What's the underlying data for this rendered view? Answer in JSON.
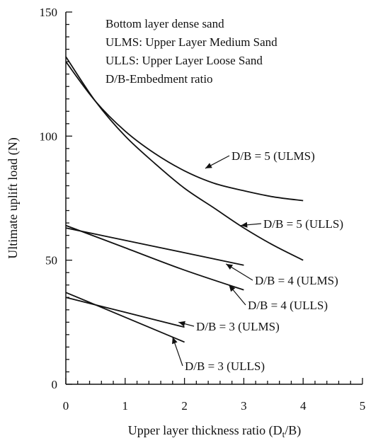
{
  "chart_data": {
    "type": "line",
    "xlabel": "Upper layer thickness ratio (D",
    "xlabel_sub": "t",
    "xlabel_tail": "/B)",
    "ylabel": "Ultimate uplift load (N)",
    "xlim": [
      0,
      5
    ],
    "ylim": [
      0,
      150
    ],
    "x_ticks": [
      "0",
      "1",
      "2",
      "3",
      "4",
      "5"
    ],
    "y_ticks": [
      "0",
      "50",
      "100",
      "150"
    ],
    "grid": false,
    "notes": [
      "Bottom layer dense sand",
      "ULMS: Upper Layer Medium Sand",
      "ULLS: Upper Layer Loose Sand",
      "D/B-Embedment ratio"
    ],
    "series": [
      {
        "name": "D/B = 5 (ULMS)",
        "x": [
          0,
          0.5,
          1,
          1.5,
          2,
          2.5,
          3,
          3.5,
          4
        ],
        "y": [
          130,
          114,
          102,
          93,
          86,
          81,
          78,
          75.5,
          74
        ],
        "label_at": [
          2.35,
          87
        ]
      },
      {
        "name": "D/B = 5 (ULLS)",
        "x": [
          0,
          0.5,
          1,
          1.5,
          2,
          2.5,
          3,
          3.5,
          4
        ],
        "y": [
          132,
          114,
          100,
          89,
          79,
          71,
          63,
          56,
          50
        ],
        "label_at": [
          2.95,
          64
        ]
      },
      {
        "name": "D/B = 4 (ULMS)",
        "x": [
          0,
          1,
          2,
          3
        ],
        "y": [
          63,
          58,
          53,
          48
        ],
        "label_at": [
          2.7,
          48.5
        ]
      },
      {
        "name": "D/B = 4 (ULLS)",
        "x": [
          0,
          1,
          2,
          3
        ],
        "y": [
          64,
          55,
          46,
          38
        ],
        "label_at": [
          2.75,
          40
        ]
      },
      {
        "name": "D/B = 3 (ULMS)",
        "x": [
          0,
          1,
          2
        ],
        "y": [
          35,
          29,
          23
        ],
        "label_at": [
          1.9,
          25
        ]
      },
      {
        "name": "D/B = 3 (ULLS)",
        "x": [
          0,
          1,
          2
        ],
        "y": [
          37,
          27,
          17
        ],
        "label_at": [
          1.8,
          19
        ]
      }
    ]
  }
}
